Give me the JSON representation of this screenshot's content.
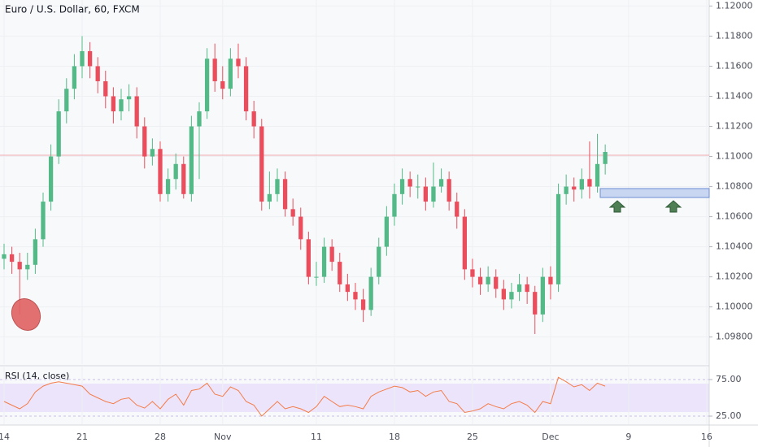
{
  "chart_data": [
    {
      "type": "candlestick",
      "title": "Euro / U.S. Dollar, 60, FXCM",
      "x": [
        0,
        0.5,
        1,
        1.5,
        2,
        2.5,
        3,
        3.5,
        4,
        4.5,
        5,
        5.5,
        6,
        6.5,
        7,
        7.5,
        8,
        8.5,
        9,
        9.5,
        10,
        10.5,
        11,
        11.5,
        12,
        12.5,
        13,
        13.5,
        14,
        14.5,
        15,
        15.5,
        16,
        16.5,
        17,
        17.5,
        18,
        18.5,
        19,
        19.5,
        20,
        20.5,
        21,
        21.5,
        22,
        22.5,
        23,
        23.5,
        24,
        24.5,
        25,
        25.5,
        26,
        26.5,
        27,
        27.5,
        28,
        28.5,
        29,
        29.5,
        30,
        30.5,
        31,
        31.5,
        32,
        32.5,
        33,
        33.5,
        34,
        34.5,
        35,
        35.5,
        36,
        36.5,
        37,
        37.5,
        38,
        38.5
      ],
      "open": [
        1.1032,
        1.1035,
        1.103,
        1.1025,
        1.1028,
        1.1045,
        1.107,
        1.11,
        1.113,
        1.1145,
        1.116,
        1.117,
        1.116,
        1.115,
        1.114,
        1.113,
        1.1138,
        1.114,
        1.112,
        1.11,
        1.1105,
        1.1075,
        1.1085,
        1.1095,
        1.1075,
        1.112,
        1.113,
        1.1165,
        1.115,
        1.1145,
        1.1165,
        1.116,
        1.113,
        1.112,
        1.107,
        1.1075,
        1.1085,
        1.1065,
        1.106,
        1.1045,
        1.102,
        1.102,
        1.104,
        1.103,
        1.1015,
        1.101,
        1.1005,
        1.0998,
        1.102,
        1.104,
        1.106,
        1.1075,
        1.1085,
        1.108,
        1.108,
        1.107,
        1.108,
        1.1085,
        1.107,
        1.106,
        1.1025,
        1.102,
        1.1015,
        1.102,
        1.1012,
        1.1005,
        1.101,
        1.1015,
        1.101,
        1.0995,
        1.102,
        1.1015,
        1.1075,
        1.108,
        1.1078,
        1.1085,
        1.108,
        1.1095
      ],
      "high": [
        1.1042,
        1.104,
        1.1036,
        1.1036,
        1.1052,
        1.1076,
        1.1108,
        1.1138,
        1.1152,
        1.1168,
        1.118,
        1.1176,
        1.1166,
        1.1157,
        1.1146,
        1.1145,
        1.1148,
        1.1146,
        1.1126,
        1.1112,
        1.111,
        1.1092,
        1.1102,
        1.11,
        1.1127,
        1.1136,
        1.1172,
        1.1175,
        1.116,
        1.1172,
        1.1175,
        1.1166,
        1.1137,
        1.1125,
        1.109,
        1.1092,
        1.109,
        1.1072,
        1.1066,
        1.105,
        1.103,
        1.1046,
        1.1045,
        1.1036,
        1.1022,
        1.1016,
        1.1012,
        1.1026,
        1.1046,
        1.1067,
        1.1082,
        1.1092,
        1.109,
        1.1088,
        1.1086,
        1.1096,
        1.1092,
        1.109,
        1.1076,
        1.1065,
        1.1032,
        1.1026,
        1.1027,
        1.1025,
        1.1018,
        1.1016,
        1.1022,
        1.102,
        1.1014,
        1.1026,
        1.1027,
        1.1082,
        1.1088,
        1.1086,
        1.1092,
        1.111,
        1.1115,
        1.1108
      ],
      "low": [
        1.1025,
        1.1022,
        1.0995,
        1.1018,
        1.1022,
        1.104,
        1.1064,
        1.1095,
        1.1122,
        1.1138,
        1.1152,
        1.1152,
        1.1142,
        1.1132,
        1.1122,
        1.1124,
        1.113,
        1.1112,
        1.1092,
        1.1094,
        1.107,
        1.107,
        1.1078,
        1.1072,
        1.107,
        1.1085,
        1.1125,
        1.1143,
        1.1138,
        1.114,
        1.1152,
        1.1124,
        1.1112,
        1.1064,
        1.1065,
        1.107,
        1.106,
        1.1054,
        1.1038,
        1.1015,
        1.1014,
        1.1016,
        1.1024,
        1.101,
        1.1004,
        1.0998,
        1.099,
        1.0994,
        1.1015,
        1.1034,
        1.1054,
        1.1068,
        1.1073,
        1.1072,
        1.1064,
        1.1066,
        1.1076,
        1.1064,
        1.1052,
        1.1018,
        1.1013,
        1.1008,
        1.101,
        1.1006,
        1.0998,
        1.0999,
        1.1004,
        1.1002,
        1.0982,
        1.099,
        1.1005,
        1.101,
        1.1068,
        1.107,
        1.1072,
        1.1072,
        1.1076,
        1.1088
      ],
      "close": [
        1.1035,
        1.103,
        1.1025,
        1.1028,
        1.1045,
        1.107,
        1.11,
        1.113,
        1.1145,
        1.116,
        1.117,
        1.116,
        1.115,
        1.114,
        1.113,
        1.1138,
        1.114,
        1.112,
        1.11,
        1.1105,
        1.1075,
        1.1085,
        1.1095,
        1.1075,
        1.112,
        1.113,
        1.1165,
        1.115,
        1.1145,
        1.1165,
        1.116,
        1.113,
        1.112,
        1.107,
        1.1075,
        1.1085,
        1.1065,
        1.106,
        1.1045,
        1.102,
        1.102,
        1.104,
        1.103,
        1.1015,
        1.101,
        1.1005,
        1.0998,
        1.102,
        1.104,
        1.106,
        1.1075,
        1.1085,
        1.108,
        1.108,
        1.107,
        1.108,
        1.1085,
        1.107,
        1.106,
        1.1025,
        1.102,
        1.1015,
        1.102,
        1.1012,
        1.1005,
        1.101,
        1.1015,
        1.101,
        1.0995,
        1.102,
        1.1015,
        1.1075,
        1.108,
        1.1078,
        1.1085,
        1.108,
        1.1095,
        1.1103
      ],
      "up_color": "#53b987",
      "down_color": "#eb4d5c",
      "xlim": [
        -0.26,
        45.16
      ],
      "xticks": [
        {
          "value": 0,
          "label": "14"
        },
        {
          "value": 5,
          "label": "21"
        },
        {
          "value": 10,
          "label": "28"
        },
        {
          "value": 14,
          "label": "Nov"
        },
        {
          "value": 20,
          "label": "11"
        },
        {
          "value": 25,
          "label": "18"
        },
        {
          "value": 30,
          "label": "25"
        },
        {
          "value": 35,
          "label": "Dec"
        },
        {
          "value": 40,
          "label": "9"
        },
        {
          "value": 45,
          "label": "16"
        }
      ],
      "ylim": [
        1.0962,
        1.1204
      ],
      "yticks": [
        {
          "value": 1.12,
          "label": "1.12000"
        },
        {
          "value": 1.118,
          "label": "1.11800"
        },
        {
          "value": 1.116,
          "label": "1.11600"
        },
        {
          "value": 1.114,
          "label": "1.11400"
        },
        {
          "value": 1.112,
          "label": "1.11200"
        },
        {
          "value": 1.11,
          "label": "1.11000"
        },
        {
          "value": 1.108,
          "label": "1.10800"
        },
        {
          "value": 1.106,
          "label": "1.10600"
        },
        {
          "value": 1.104,
          "label": "1.10400"
        },
        {
          "value": 1.102,
          "label": "1.10200"
        },
        {
          "value": 1.1,
          "label": "1.10000"
        },
        {
          "value": 1.098,
          "label": "1.09800"
        }
      ],
      "grid": true
    },
    {
      "type": "line",
      "title": "RSI (14, close)",
      "x": [
        0,
        0.5,
        1,
        1.5,
        2,
        2.5,
        3,
        3.5,
        4,
        4.5,
        5,
        5.5,
        6,
        6.5,
        7,
        7.5,
        8,
        8.5,
        9,
        9.5,
        10,
        10.5,
        11,
        11.5,
        12,
        12.5,
        13,
        13.5,
        14,
        14.5,
        15,
        15.5,
        16,
        16.5,
        17,
        17.5,
        18,
        18.5,
        19,
        19.5,
        20,
        20.5,
        21,
        21.5,
        22,
        22.5,
        23,
        23.5,
        24,
        24.5,
        25,
        25.5,
        26,
        26.5,
        27,
        27.5,
        28,
        28.5,
        29,
        29.5,
        30,
        30.5,
        31,
        31.5,
        32,
        32.5,
        33,
        33.5,
        34,
        34.5,
        35,
        35.5,
        36,
        36.5,
        37,
        37.5,
        38,
        38.5
      ],
      "values": [
        45,
        40,
        35,
        42,
        58,
        66,
        70,
        72,
        70,
        68,
        66,
        55,
        50,
        45,
        42,
        48,
        50,
        40,
        36,
        45,
        35,
        48,
        55,
        40,
        60,
        62,
        70,
        55,
        52,
        65,
        60,
        45,
        40,
        25,
        35,
        45,
        35,
        38,
        35,
        30,
        38,
        52,
        45,
        38,
        40,
        38,
        35,
        52,
        58,
        62,
        66,
        64,
        58,
        60,
        52,
        58,
        60,
        45,
        42,
        30,
        32,
        35,
        42,
        38,
        35,
        42,
        45,
        40,
        30,
        45,
        42,
        78,
        72,
        65,
        68,
        60,
        70,
        66
      ],
      "color": "#f47c48",
      "xlim": [
        -0.26,
        45.16
      ],
      "ylim": [
        13.9,
        91.7
      ],
      "yticks": [
        {
          "value": 75,
          "label": "75.00"
        },
        {
          "value": 25,
          "label": "25.00"
        }
      ],
      "grid": true
    }
  ]
}
